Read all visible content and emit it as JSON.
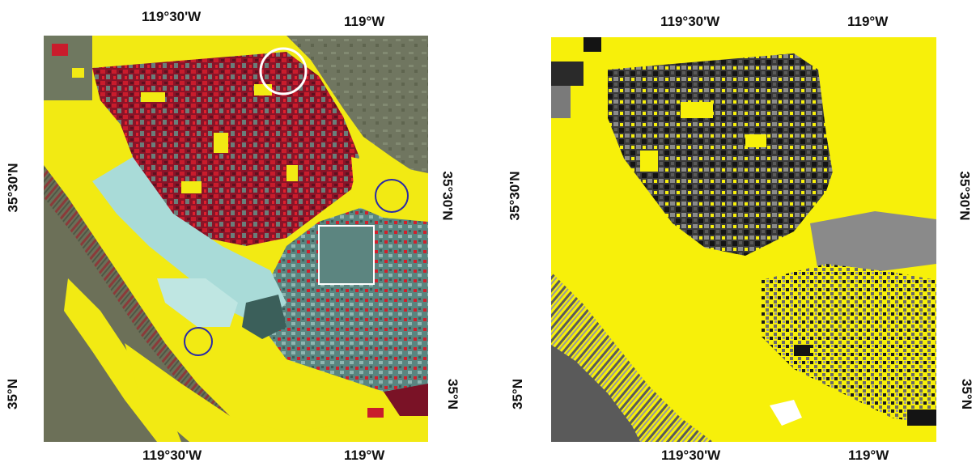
{
  "figure": {
    "left_panel": {
      "top_labels": [
        "119°30'W",
        "119°W"
      ],
      "bottom_labels": [
        "119°30'W",
        "119°W"
      ],
      "left_labels": [
        "35°30'N",
        "35°N"
      ],
      "right_labels": [
        "35°30'N",
        "35°N"
      ],
      "markers": [
        {
          "name": "white-circle",
          "color": "#ffffff"
        },
        {
          "name": "blue-circle-east",
          "color": "#2a2aa8"
        },
        {
          "name": "white-square",
          "color": "#ffffff"
        },
        {
          "name": "blue-circle-south",
          "color": "#2a2aa8"
        }
      ],
      "colors": {
        "yellow": "#f2ea13",
        "red": "#c0182a",
        "dark_red": "#7a1226",
        "cyan": "#a9dbd8",
        "teal": "#4f7f7b",
        "olive": "#6e7458"
      }
    },
    "right_panel": {
      "top_labels": [
        "119°30'W",
        "119°W"
      ],
      "bottom_labels": [
        "119°30'W",
        "119°W"
      ],
      "left_labels": [
        "35°30'N",
        "35°N"
      ],
      "right_labels": [
        "35°30'N",
        "35°N"
      ],
      "colors": {
        "yellow": "#f7f00a",
        "black": "#141414",
        "dark_gray": "#4a4a4a",
        "gray": "#8a8a8a",
        "white": "#ffffff"
      }
    }
  }
}
